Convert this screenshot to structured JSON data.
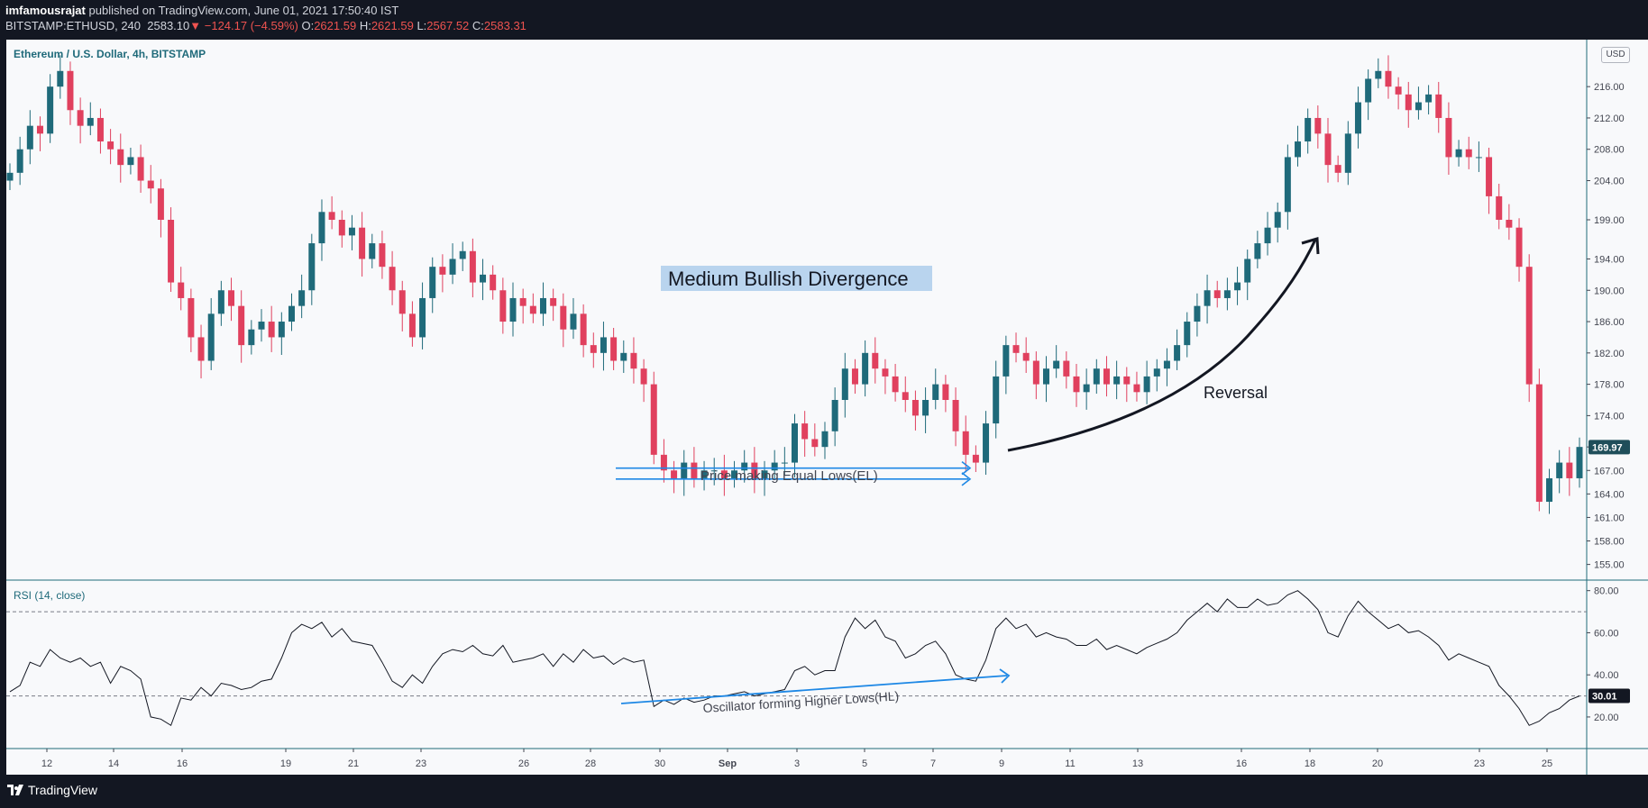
{
  "header": {
    "author": "imfamousrajat",
    "published": "published on TradingView.com, June 01, 2021 17:50:40 IST",
    "symbol": "BITSTAMP:ETHUSD, 240",
    "last": "2583.10",
    "change": "−124.17 (−4.59%)",
    "o_label": "O:",
    "o": "2621.59",
    "h_label": "H:",
    "h": "2621.59",
    "l_label": "L:",
    "l": "2567.52",
    "c_label": "C:",
    "c": "2583.31"
  },
  "main_pane": {
    "title": "Ethereum / U.S. Dollar, 4h, BITSTAMP",
    "currency": "USD"
  },
  "rsi_pane": {
    "title": "RSI (14, close)"
  },
  "footer": {
    "brand": "TradingView"
  },
  "colors": {
    "up": "#1f6a7a",
    "down": "#e0405e",
    "annotation": "#1e88e5",
    "background": "#f8f9fb"
  },
  "chart_data": [
    {
      "type": "candlestick",
      "x_ticks": [
        "12",
        "14",
        "16",
        "19",
        "21",
        "23",
        "26",
        "28",
        "30",
        "Sep",
        "3",
        "5",
        "7",
        "9",
        "11",
        "13",
        "16",
        "18",
        "20",
        "23",
        "25"
      ],
      "y_ticks": [
        155.0,
        158.0,
        161.0,
        164.0,
        167.0,
        170.0,
        174.0,
        178.0,
        182.0,
        186.0,
        190.0,
        194.0,
        199.0,
        204.0,
        208.0,
        212.0,
        216.0
      ],
      "ylim": [
        153,
        222
      ],
      "last_price": "169.97",
      "annotations": {
        "divergence_label": "Medium Bullish Divergence",
        "equal_lows_label": "Price making Equal Lows(EL)",
        "reversal_label": "Reversal"
      },
      "closes": [
        205,
        208,
        211,
        210,
        216,
        218,
        213,
        211,
        212,
        209,
        208,
        206,
        207,
        204,
        203,
        199,
        191,
        189,
        184,
        181,
        187,
        190,
        188,
        183,
        185,
        186,
        184,
        186,
        188,
        190,
        196,
        200,
        199,
        197,
        198,
        194,
        196,
        193,
        190,
        187,
        184,
        189,
        193,
        192,
        194,
        195,
        191,
        192,
        190,
        186,
        189,
        188,
        187,
        189,
        188,
        185,
        187,
        183,
        182,
        184,
        181,
        182,
        180,
        178,
        169,
        167,
        166,
        168,
        166,
        167,
        167,
        166,
        167,
        168,
        166,
        167,
        168,
        168,
        173,
        171,
        170,
        172,
        176,
        180,
        178,
        182,
        180,
        179,
        177,
        176,
        174,
        176,
        178,
        176,
        172,
        169,
        168,
        173,
        179,
        183,
        182,
        181,
        178,
        180,
        181,
        179,
        177,
        178,
        180,
        178,
        179,
        178,
        177,
        179,
        180,
        181,
        183,
        186,
        188,
        190,
        189,
        190,
        191,
        194,
        196,
        198,
        200,
        207,
        209,
        212,
        210,
        206,
        205,
        210,
        214,
        217,
        218,
        216,
        215,
        213,
        214,
        215,
        212,
        207,
        208,
        207,
        207,
        202,
        199,
        198,
        193,
        178,
        163,
        166,
        168,
        166,
        170
      ]
    },
    {
      "type": "line",
      "name": "RSI (14, close)",
      "y_ticks": [
        20.0,
        40.0,
        60.0,
        80.0
      ],
      "ylim": [
        5,
        85
      ],
      "levels": [
        70,
        30
      ],
      "last_value": "30.01",
      "annotation": "Oscillator forming Higher Lows(HL)",
      "values": [
        32,
        35,
        46,
        44,
        52,
        48,
        46,
        48,
        44,
        46,
        36,
        44,
        42,
        38,
        20,
        19,
        16,
        29,
        28,
        34,
        30,
        36,
        35,
        33,
        34,
        37,
        38,
        48,
        60,
        64,
        62,
        65,
        58,
        62,
        56,
        55,
        54,
        46,
        37,
        34,
        40,
        36,
        44,
        50,
        52,
        51,
        54,
        50,
        49,
        54,
        46,
        47,
        48,
        50,
        44,
        50,
        46,
        52,
        48,
        49,
        45,
        48,
        46,
        47,
        25,
        28,
        26,
        29,
        27,
        28,
        30,
        30,
        31,
        32,
        30,
        31,
        32,
        33,
        42,
        44,
        40,
        42,
        42,
        58,
        67,
        62,
        66,
        58,
        56,
        48,
        50,
        54,
        56,
        50,
        40,
        38,
        37,
        47,
        62,
        67,
        62,
        64,
        58,
        60,
        58,
        57,
        54,
        54,
        57,
        52,
        54,
        52,
        50,
        53,
        55,
        57,
        60,
        66,
        70,
        74,
        70,
        76,
        72,
        72,
        76,
        73,
        74,
        78,
        80,
        76,
        71,
        60,
        58,
        68,
        75,
        70,
        66,
        62,
        64,
        60,
        61,
        58,
        54,
        47,
        50,
        48,
        46,
        44,
        35,
        30,
        24,
        16,
        18,
        22,
        24,
        28,
        30
      ]
    }
  ]
}
